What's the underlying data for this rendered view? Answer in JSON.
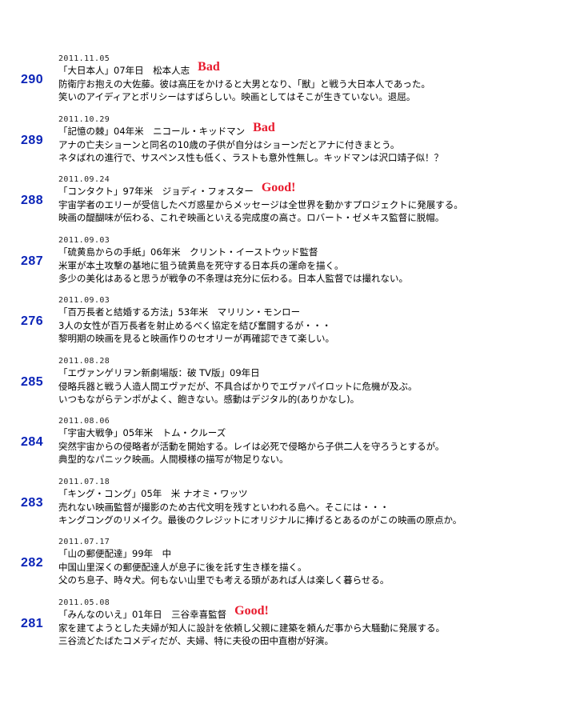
{
  "entries": [
    {
      "number": "290",
      "date": "2011.11.05",
      "title": "「大日本人」07年日　松本人志",
      "rating": "Bad",
      "line1": "防衛庁お抱えの大佐藤。彼は高圧をかけると大男となり、「獣」と戦う大日本人であった。",
      "line2": "笑いのアイディアとポリシーはすばらしい。映画としてはそこが生きていない。退屈。"
    },
    {
      "number": "289",
      "date": "2011.10.29",
      "title": "「記憶の棘」04年米　ニコール・キッドマン",
      "rating": "Bad",
      "line1": "アナの亡夫ショーンと同名の10歳の子供が自分はショーンだとアナに付きまとう。",
      "line2": "ネタばれの進行で、サスペンス性も低く、ラストも意外性無し。キッドマンは沢口靖子似！？"
    },
    {
      "number": "288",
      "date": "2011.09.24",
      "title": "「コンタクト」97年米　ジョディ・フォスター",
      "rating": "Good!",
      "line1": "宇宙学者のエリーが受信したベガ惑星からメッセージは全世界を動かすプロジェクトに発展する。",
      "line2": "映画の醍醐味が伝わる、これぞ映画といえる完成度の高さ。ロバート・ゼメキス監督に脱帽。"
    },
    {
      "number": "287",
      "date": "2011.09.03",
      "title": "「硫黄島からの手紙」06年米　クリント・イーストウッド監督",
      "rating": "",
      "line1": "米軍が本土攻撃の基地に狙う硫黄島を死守する日本兵の運命を描く。",
      "line2": "多少の美化はあると思うが戦争の不条理は充分に伝わる。日本人監督では撮れない。"
    },
    {
      "number": "276",
      "date": "2011.09.03",
      "title": "「百万長者と結婚する方法」53年米　マリリン・モンロー",
      "rating": "",
      "line1": "3人の女性が百万長者を射止めるべく協定を結び奮闘するが・・・",
      "line2": "黎明期の映画を見ると映画作りのセオリーが再確認できて楽しい。"
    },
    {
      "number": "285",
      "date": "2011.08.28",
      "title": "「エヴァンゲリヲン新劇場版：破 TV版」09年日",
      "rating": "",
      "line1": "侵略兵器と戦う人造人間エヴァだが、不具合ばかりでエヴァパイロットに危機が及ぶ。",
      "line2": "いつもながらテンポがよく、飽きない。感動はデジタル的(ありかなし)。"
    },
    {
      "number": "284",
      "date": "2011.08.06",
      "title": "「宇宙大戦争」05年米　トム・クルーズ",
      "rating": "",
      "line1": "突然宇宙からの侵略者が活動を開始する。レイは必死で侵略から子供二人を守ろうとするが。",
      "line2": "典型的なパニック映画。人間模様の描写が物足りない。"
    },
    {
      "number": "283",
      "date": "2011.07.18",
      "title": "「キング・コング」05年　米 ナオミ・ワッツ",
      "rating": "",
      "line1": "売れない映画監督が撮影のため古代文明を残すといわれる島へ。そこには・・・",
      "line2": "キングコングのリメイク。最後のクレジットにオリジナルに捧げるとあるのがこの映画の原点か。"
    },
    {
      "number": "282",
      "date": "2011.07.17",
      "title": "「山の郵便配達」99年　中",
      "rating": "",
      "line1": "中国山里深くの郵便配達人が息子に後を託す生き様を描く。",
      "line2": "父のち息子、時々犬。何もない山里でも考える頭があれば人は楽しく暮らせる。"
    },
    {
      "number": "281",
      "date": "2011.05.08",
      "title": "「みんなのいえ」01年日　三谷幸喜監督",
      "rating": "Good!",
      "line1": "家を建てようとした夫婦が知人に設計を依頼し父親に建築を頼んだ事から大騒動に発展する。",
      "line2": "三谷流どたばたコメディだが、夫婦、特に夫役の田中直樹が好演。"
    }
  ]
}
